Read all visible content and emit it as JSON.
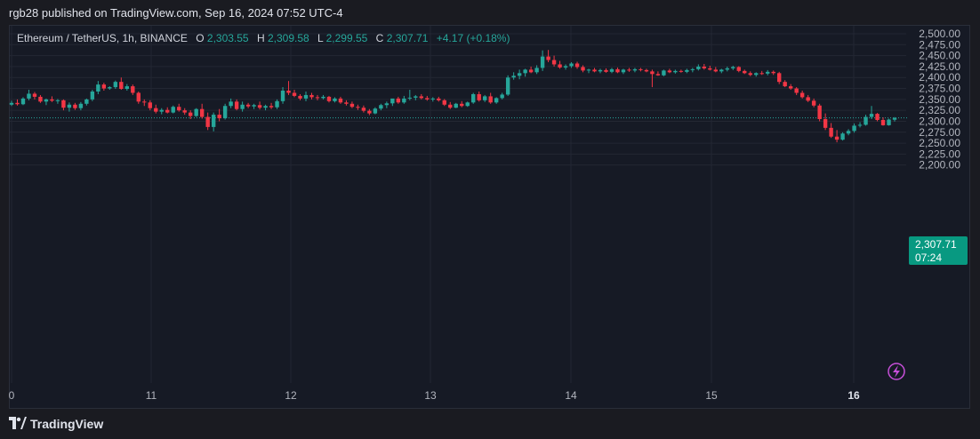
{
  "header": {
    "published": "rgb28 published on TradingView.com, Sep 16, 2024 07:52 UTC-4"
  },
  "legend": {
    "symbol": "Ethereum / TetherUS, 1h, BINANCE",
    "o_label": "O",
    "o_value": "2,303.55",
    "h_label": "H",
    "h_value": "2,309.58",
    "l_label": "L",
    "l_value": "2,299.55",
    "c_label": "C",
    "c_value": "2,307.71",
    "change": "+4.17 (+0.18%)"
  },
  "price_badge": {
    "price": "2,307.71",
    "countdown": "07:24"
  },
  "footer": {
    "brand": "TradingView"
  },
  "colors": {
    "up": "#26a69a",
    "down": "#f23645",
    "grid": "#232733",
    "text": "#b2b5be",
    "badge": "#089981"
  },
  "chart_data": {
    "type": "candlestick",
    "y_ticks": [
      "2,500.00",
      "2,475.00",
      "2,450.00",
      "2,425.00",
      "2,400.00",
      "2,375.00",
      "2,350.00",
      "2,325.00",
      "2,300.00",
      "2,275.00",
      "2,250.00",
      "2,225.00",
      "2,200.00"
    ],
    "x_ticks": [
      "0",
      "11",
      "12",
      "13",
      "14",
      "15",
      "16"
    ],
    "ylim": [
      2190,
      2510
    ],
    "last_price": 2307.71,
    "candles": [
      {
        "o": 2338,
        "h": 2347,
        "l": 2335,
        "c": 2342
      },
      {
        "o": 2342,
        "h": 2350,
        "l": 2336,
        "c": 2339
      },
      {
        "o": 2339,
        "h": 2355,
        "l": 2337,
        "c": 2352
      },
      {
        "o": 2352,
        "h": 2372,
        "l": 2348,
        "c": 2363
      },
      {
        "o": 2363,
        "h": 2367,
        "l": 2350,
        "c": 2356
      },
      {
        "o": 2356,
        "h": 2360,
        "l": 2342,
        "c": 2345
      },
      {
        "o": 2345,
        "h": 2352,
        "l": 2337,
        "c": 2350
      },
      {
        "o": 2350,
        "h": 2357,
        "l": 2344,
        "c": 2347
      },
      {
        "o": 2347,
        "h": 2351,
        "l": 2340,
        "c": 2348
      },
      {
        "o": 2348,
        "h": 2350,
        "l": 2325,
        "c": 2331
      },
      {
        "o": 2331,
        "h": 2343,
        "l": 2322,
        "c": 2338
      },
      {
        "o": 2338,
        "h": 2342,
        "l": 2326,
        "c": 2330
      },
      {
        "o": 2330,
        "h": 2344,
        "l": 2325,
        "c": 2340
      },
      {
        "o": 2340,
        "h": 2352,
        "l": 2336,
        "c": 2350
      },
      {
        "o": 2350,
        "h": 2372,
        "l": 2346,
        "c": 2368
      },
      {
        "o": 2368,
        "h": 2392,
        "l": 2362,
        "c": 2384
      },
      {
        "o": 2384,
        "h": 2388,
        "l": 2370,
        "c": 2375
      },
      {
        "o": 2375,
        "h": 2380,
        "l": 2372,
        "c": 2378
      },
      {
        "o": 2378,
        "h": 2393,
        "l": 2374,
        "c": 2390
      },
      {
        "o": 2390,
        "h": 2400,
        "l": 2372,
        "c": 2374
      },
      {
        "o": 2374,
        "h": 2385,
        "l": 2370,
        "c": 2380
      },
      {
        "o": 2380,
        "h": 2384,
        "l": 2360,
        "c": 2365
      },
      {
        "o": 2365,
        "h": 2368,
        "l": 2340,
        "c": 2345
      },
      {
        "o": 2345,
        "h": 2350,
        "l": 2335,
        "c": 2343
      },
      {
        "o": 2343,
        "h": 2348,
        "l": 2325,
        "c": 2330
      },
      {
        "o": 2330,
        "h": 2338,
        "l": 2318,
        "c": 2322
      },
      {
        "o": 2322,
        "h": 2330,
        "l": 2316,
        "c": 2326
      },
      {
        "o": 2326,
        "h": 2332,
        "l": 2318,
        "c": 2320
      },
      {
        "o": 2320,
        "h": 2336,
        "l": 2318,
        "c": 2333
      },
      {
        "o": 2333,
        "h": 2340,
        "l": 2322,
        "c": 2325
      },
      {
        "o": 2325,
        "h": 2330,
        "l": 2315,
        "c": 2320
      },
      {
        "o": 2320,
        "h": 2325,
        "l": 2305,
        "c": 2312
      },
      {
        "o": 2312,
        "h": 2330,
        "l": 2310,
        "c": 2328
      },
      {
        "o": 2328,
        "h": 2340,
        "l": 2306,
        "c": 2310
      },
      {
        "o": 2310,
        "h": 2320,
        "l": 2280,
        "c": 2287
      },
      {
        "o": 2287,
        "h": 2320,
        "l": 2277,
        "c": 2315
      },
      {
        "o": 2315,
        "h": 2328,
        "l": 2300,
        "c": 2307
      },
      {
        "o": 2307,
        "h": 2340,
        "l": 2304,
        "c": 2335
      },
      {
        "o": 2335,
        "h": 2352,
        "l": 2330,
        "c": 2345
      },
      {
        "o": 2345,
        "h": 2350,
        "l": 2325,
        "c": 2328
      },
      {
        "o": 2328,
        "h": 2345,
        "l": 2322,
        "c": 2338
      },
      {
        "o": 2338,
        "h": 2342,
        "l": 2330,
        "c": 2334
      },
      {
        "o": 2334,
        "h": 2340,
        "l": 2328,
        "c": 2337
      },
      {
        "o": 2337,
        "h": 2345,
        "l": 2327,
        "c": 2331
      },
      {
        "o": 2331,
        "h": 2338,
        "l": 2325,
        "c": 2335
      },
      {
        "o": 2335,
        "h": 2342,
        "l": 2328,
        "c": 2332
      },
      {
        "o": 2332,
        "h": 2350,
        "l": 2328,
        "c": 2346
      },
      {
        "o": 2346,
        "h": 2378,
        "l": 2340,
        "c": 2370
      },
      {
        "o": 2370,
        "h": 2392,
        "l": 2360,
        "c": 2365
      },
      {
        "o": 2365,
        "h": 2372,
        "l": 2355,
        "c": 2358
      },
      {
        "o": 2358,
        "h": 2362,
        "l": 2348,
        "c": 2352
      },
      {
        "o": 2352,
        "h": 2368,
        "l": 2346,
        "c": 2360
      },
      {
        "o": 2360,
        "h": 2365,
        "l": 2350,
        "c": 2355
      },
      {
        "o": 2355,
        "h": 2360,
        "l": 2348,
        "c": 2353
      },
      {
        "o": 2353,
        "h": 2360,
        "l": 2350,
        "c": 2356
      },
      {
        "o": 2356,
        "h": 2358,
        "l": 2343,
        "c": 2346
      },
      {
        "o": 2346,
        "h": 2355,
        "l": 2343,
        "c": 2352
      },
      {
        "o": 2352,
        "h": 2356,
        "l": 2340,
        "c": 2343
      },
      {
        "o": 2343,
        "h": 2348,
        "l": 2336,
        "c": 2340
      },
      {
        "o": 2340,
        "h": 2345,
        "l": 2330,
        "c": 2333
      },
      {
        "o": 2333,
        "h": 2338,
        "l": 2326,
        "c": 2331
      },
      {
        "o": 2331,
        "h": 2336,
        "l": 2320,
        "c": 2324
      },
      {
        "o": 2324,
        "h": 2328,
        "l": 2314,
        "c": 2318
      },
      {
        "o": 2318,
        "h": 2332,
        "l": 2316,
        "c": 2329
      },
      {
        "o": 2329,
        "h": 2340,
        "l": 2325,
        "c": 2337
      },
      {
        "o": 2337,
        "h": 2345,
        "l": 2330,
        "c": 2341
      },
      {
        "o": 2341,
        "h": 2350,
        "l": 2335,
        "c": 2352
      },
      {
        "o": 2352,
        "h": 2356,
        "l": 2340,
        "c": 2343
      },
      {
        "o": 2343,
        "h": 2358,
        "l": 2340,
        "c": 2352
      },
      {
        "o": 2352,
        "h": 2372,
        "l": 2348,
        "c": 2354
      },
      {
        "o": 2354,
        "h": 2360,
        "l": 2348,
        "c": 2357
      },
      {
        "o": 2357,
        "h": 2362,
        "l": 2350,
        "c": 2353
      },
      {
        "o": 2353,
        "h": 2358,
        "l": 2347,
        "c": 2350
      },
      {
        "o": 2350,
        "h": 2355,
        "l": 2345,
        "c": 2352
      },
      {
        "o": 2352,
        "h": 2356,
        "l": 2345,
        "c": 2348
      },
      {
        "o": 2348,
        "h": 2351,
        "l": 2335,
        "c": 2338
      },
      {
        "o": 2338,
        "h": 2344,
        "l": 2328,
        "c": 2331
      },
      {
        "o": 2331,
        "h": 2342,
        "l": 2330,
        "c": 2340
      },
      {
        "o": 2340,
        "h": 2346,
        "l": 2332,
        "c": 2335
      },
      {
        "o": 2335,
        "h": 2345,
        "l": 2333,
        "c": 2343
      },
      {
        "o": 2343,
        "h": 2365,
        "l": 2340,
        "c": 2362
      },
      {
        "o": 2362,
        "h": 2368,
        "l": 2345,
        "c": 2348
      },
      {
        "o": 2348,
        "h": 2360,
        "l": 2344,
        "c": 2357
      },
      {
        "o": 2357,
        "h": 2365,
        "l": 2340,
        "c": 2343
      },
      {
        "o": 2343,
        "h": 2355,
        "l": 2340,
        "c": 2353
      },
      {
        "o": 2353,
        "h": 2365,
        "l": 2350,
        "c": 2361
      },
      {
        "o": 2361,
        "h": 2405,
        "l": 2358,
        "c": 2400
      },
      {
        "o": 2400,
        "h": 2412,
        "l": 2395,
        "c": 2404
      },
      {
        "o": 2404,
        "h": 2418,
        "l": 2396,
        "c": 2410
      },
      {
        "o": 2410,
        "h": 2420,
        "l": 2402,
        "c": 2418
      },
      {
        "o": 2418,
        "h": 2425,
        "l": 2410,
        "c": 2412
      },
      {
        "o": 2412,
        "h": 2428,
        "l": 2408,
        "c": 2422
      },
      {
        "o": 2422,
        "h": 2462,
        "l": 2415,
        "c": 2448
      },
      {
        "o": 2448,
        "h": 2463,
        "l": 2435,
        "c": 2440
      },
      {
        "o": 2440,
        "h": 2450,
        "l": 2425,
        "c": 2430
      },
      {
        "o": 2430,
        "h": 2438,
        "l": 2420,
        "c": 2423
      },
      {
        "o": 2423,
        "h": 2430,
        "l": 2418,
        "c": 2426
      },
      {
        "o": 2426,
        "h": 2435,
        "l": 2422,
        "c": 2432
      },
      {
        "o": 2432,
        "h": 2436,
        "l": 2420,
        "c": 2424
      },
      {
        "o": 2424,
        "h": 2428,
        "l": 2412,
        "c": 2416
      },
      {
        "o": 2416,
        "h": 2420,
        "l": 2410,
        "c": 2418
      },
      {
        "o": 2418,
        "h": 2422,
        "l": 2412,
        "c": 2414
      },
      {
        "o": 2414,
        "h": 2420,
        "l": 2410,
        "c": 2417
      },
      {
        "o": 2417,
        "h": 2421,
        "l": 2411,
        "c": 2413
      },
      {
        "o": 2413,
        "h": 2422,
        "l": 2410,
        "c": 2419
      },
      {
        "o": 2419,
        "h": 2423,
        "l": 2410,
        "c": 2412
      },
      {
        "o": 2412,
        "h": 2420,
        "l": 2408,
        "c": 2418
      },
      {
        "o": 2418,
        "h": 2422,
        "l": 2413,
        "c": 2416
      },
      {
        "o": 2416,
        "h": 2422,
        "l": 2412,
        "c": 2419
      },
      {
        "o": 2419,
        "h": 2422,
        "l": 2414,
        "c": 2417
      },
      {
        "o": 2417,
        "h": 2420,
        "l": 2412,
        "c": 2414
      },
      {
        "o": 2414,
        "h": 2418,
        "l": 2378,
        "c": 2408
      },
      {
        "o": 2408,
        "h": 2414,
        "l": 2404,
        "c": 2405
      },
      {
        "o": 2405,
        "h": 2418,
        "l": 2403,
        "c": 2416
      },
      {
        "o": 2416,
        "h": 2420,
        "l": 2410,
        "c": 2412
      },
      {
        "o": 2412,
        "h": 2418,
        "l": 2409,
        "c": 2415
      },
      {
        "o": 2415,
        "h": 2418,
        "l": 2411,
        "c": 2413
      },
      {
        "o": 2413,
        "h": 2420,
        "l": 2410,
        "c": 2417
      },
      {
        "o": 2417,
        "h": 2422,
        "l": 2412,
        "c": 2419
      },
      {
        "o": 2419,
        "h": 2430,
        "l": 2416,
        "c": 2425
      },
      {
        "o": 2425,
        "h": 2431,
        "l": 2418,
        "c": 2421
      },
      {
        "o": 2421,
        "h": 2427,
        "l": 2416,
        "c": 2418
      },
      {
        "o": 2418,
        "h": 2424,
        "l": 2412,
        "c": 2414
      },
      {
        "o": 2414,
        "h": 2420,
        "l": 2410,
        "c": 2418
      },
      {
        "o": 2418,
        "h": 2425,
        "l": 2414,
        "c": 2421
      },
      {
        "o": 2421,
        "h": 2427,
        "l": 2417,
        "c": 2424
      },
      {
        "o": 2424,
        "h": 2426,
        "l": 2412,
        "c": 2415
      },
      {
        "o": 2415,
        "h": 2418,
        "l": 2408,
        "c": 2410
      },
      {
        "o": 2410,
        "h": 2414,
        "l": 2403,
        "c": 2406
      },
      {
        "o": 2406,
        "h": 2412,
        "l": 2402,
        "c": 2410
      },
      {
        "o": 2410,
        "h": 2415,
        "l": 2406,
        "c": 2409
      },
      {
        "o": 2409,
        "h": 2417,
        "l": 2405,
        "c": 2413
      },
      {
        "o": 2413,
        "h": 2416,
        "l": 2406,
        "c": 2410
      },
      {
        "o": 2410,
        "h": 2413,
        "l": 2385,
        "c": 2390
      },
      {
        "o": 2390,
        "h": 2394,
        "l": 2378,
        "c": 2380
      },
      {
        "o": 2380,
        "h": 2385,
        "l": 2372,
        "c": 2375
      },
      {
        "o": 2375,
        "h": 2378,
        "l": 2360,
        "c": 2365
      },
      {
        "o": 2365,
        "h": 2370,
        "l": 2352,
        "c": 2355
      },
      {
        "o": 2355,
        "h": 2360,
        "l": 2344,
        "c": 2347
      },
      {
        "o": 2347,
        "h": 2352,
        "l": 2332,
        "c": 2336
      },
      {
        "o": 2336,
        "h": 2340,
        "l": 2300,
        "c": 2305
      },
      {
        "o": 2305,
        "h": 2318,
        "l": 2280,
        "c": 2285
      },
      {
        "o": 2285,
        "h": 2296,
        "l": 2262,
        "c": 2265
      },
      {
        "o": 2265,
        "h": 2280,
        "l": 2252,
        "c": 2258
      },
      {
        "o": 2258,
        "h": 2275,
        "l": 2256,
        "c": 2272
      },
      {
        "o": 2272,
        "h": 2282,
        "l": 2268,
        "c": 2278
      },
      {
        "o": 2278,
        "h": 2295,
        "l": 2274,
        "c": 2290
      },
      {
        "o": 2290,
        "h": 2298,
        "l": 2286,
        "c": 2292
      },
      {
        "o": 2292,
        "h": 2315,
        "l": 2290,
        "c": 2310
      },
      {
        "o": 2310,
        "h": 2335,
        "l": 2305,
        "c": 2317
      },
      {
        "o": 2317,
        "h": 2319,
        "l": 2300,
        "c": 2303
      },
      {
        "o": 2303,
        "h": 2309,
        "l": 2290,
        "c": 2291
      },
      {
        "o": 2291,
        "h": 2306,
        "l": 2290,
        "c": 2304
      },
      {
        "o": 2303.55,
        "h": 2309.58,
        "l": 2299.55,
        "c": 2307.71
      }
    ]
  }
}
